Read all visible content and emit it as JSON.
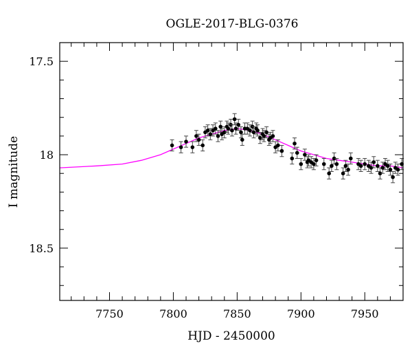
{
  "chart_data": {
    "type": "scatter",
    "title": "OGLE-2017-BLG-0376",
    "xlabel": "HJD - 2450000",
    "ylabel": "I magnitude",
    "xlim": [
      7711,
      7980
    ],
    "ylim": [
      18.78,
      17.4
    ],
    "y_inverted": true,
    "grid": false,
    "x_ticks": [
      7750,
      7800,
      7850,
      7900,
      7950
    ],
    "y_ticks": [
      17.5,
      18,
      18.5
    ],
    "y_tick_labels": [
      "17.5",
      "18",
      "18.5"
    ],
    "x_tick_labels": [
      "7750",
      "7800",
      "7850",
      "7900",
      "7950"
    ],
    "colors": {
      "model": "#ff00ff",
      "points": "#000000"
    },
    "series": [
      {
        "type": "scatter",
        "x": [
          7799,
          7806,
          7810,
          7815,
          7818,
          7820,
          7823,
          7825,
          7827,
          7829,
          7831,
          7833,
          7835,
          7837,
          7838,
          7840,
          7842,
          7843,
          7845,
          7846,
          7848,
          7849,
          7851,
          7853,
          7854,
          7856,
          7858,
          7860,
          7862,
          7863,
          7865,
          7866,
          7868,
          7870,
          7871,
          7873,
          7875,
          7876,
          7878,
          7880,
          7882,
          7885,
          7893,
          7895,
          7897,
          7900,
          7903,
          7905,
          7906,
          7908,
          7910,
          7912,
          7918,
          7922,
          7924,
          7926,
          7928,
          7933,
          7935,
          7937,
          7939,
          7945,
          7947,
          7950,
          7953,
          7955,
          7957,
          7960,
          7962,
          7964,
          7966,
          7968,
          7970,
          7972,
          7974,
          7976,
          7979
        ],
        "y": [
          17.95,
          17.96,
          17.93,
          17.96,
          17.9,
          17.92,
          17.95,
          17.88,
          17.87,
          17.89,
          17.87,
          17.86,
          17.9,
          17.85,
          17.89,
          17.88,
          17.85,
          17.86,
          17.84,
          17.87,
          17.81,
          17.86,
          17.84,
          17.88,
          17.92,
          17.86,
          17.86,
          17.87,
          17.85,
          17.88,
          17.86,
          17.87,
          17.91,
          17.89,
          17.9,
          17.88,
          17.92,
          17.91,
          17.9,
          17.96,
          17.95,
          17.98,
          18.02,
          17.94,
          17.99,
          18.05,
          18.0,
          18.04,
          18.03,
          18.04,
          18.05,
          18.03,
          18.05,
          18.1,
          18.06,
          18.02,
          18.05,
          18.1,
          18.06,
          18.08,
          18.02,
          18.05,
          18.06,
          18.05,
          18.06,
          18.07,
          18.04,
          18.06,
          18.1,
          18.07,
          18.05,
          18.06,
          18.08,
          18.12,
          18.07,
          18.08,
          18.05
        ],
        "err": 0.03
      },
      {
        "type": "line",
        "x": [
          7711,
          7740,
          7760,
          7775,
          7790,
          7800,
          7810,
          7820,
          7830,
          7840,
          7850,
          7860,
          7870,
          7880,
          7890,
          7900,
          7910,
          7920,
          7930,
          7940,
          7950,
          7960,
          7970,
          7980
        ],
        "y": [
          18.07,
          18.06,
          18.05,
          18.03,
          18.0,
          17.97,
          17.94,
          17.91,
          17.89,
          17.87,
          17.86,
          17.87,
          17.89,
          17.92,
          17.95,
          17.98,
          18.0,
          18.02,
          18.03,
          18.04,
          18.05,
          18.06,
          18.06,
          18.07
        ]
      }
    ]
  }
}
